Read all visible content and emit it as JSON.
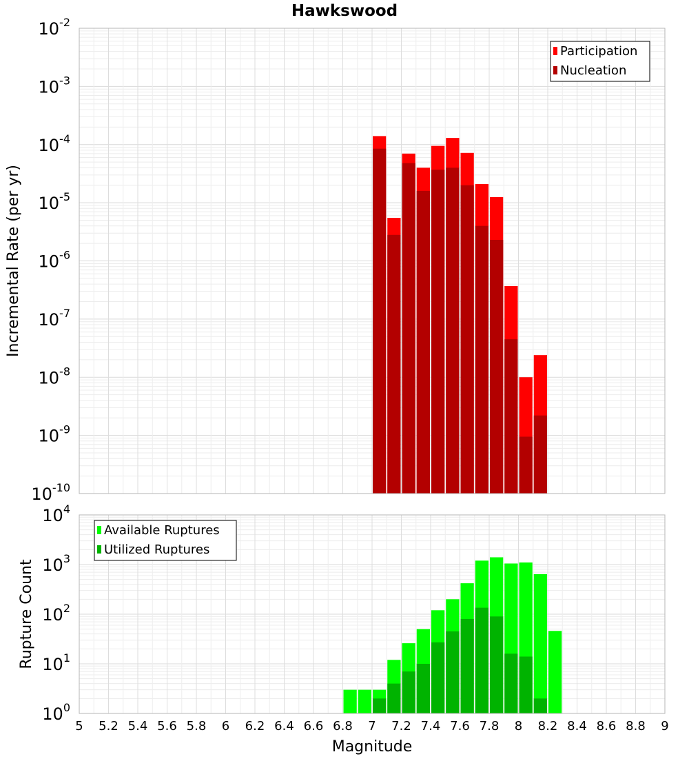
{
  "title": "Hawkswood",
  "chart_data": [
    {
      "type": "bar",
      "scale": "log",
      "ylabel": "Incremental Rate (per yr)",
      "ylim": [
        1e-10,
        0.01
      ],
      "y_tick_exponents": [
        -2,
        -3,
        -4,
        -5,
        -6,
        -7,
        -8,
        -9,
        -10
      ],
      "y_tick_base": "10",
      "xlim": [
        5,
        9
      ],
      "bar_width": 0.1,
      "grid": true,
      "legend_position": "top-right",
      "x": [
        7.05,
        7.15,
        7.25,
        7.35,
        7.45,
        7.55,
        7.65,
        7.75,
        7.85,
        7.95,
        8.05,
        8.15
      ],
      "series": [
        {
          "name": "Participation",
          "color": "#ff0000",
          "values": [
            0.00014,
            5.5e-06,
            7e-05,
            4e-05,
            9.5e-05,
            0.00013,
            7.2e-05,
            2.1e-05,
            1.25e-05,
            3.7e-07,
            1e-08,
            2.4e-08
          ]
        },
        {
          "name": "Nucleation",
          "color": "#b30000",
          "values": [
            8.5e-05,
            2.8e-06,
            4.8e-05,
            1.6e-05,
            3.7e-05,
            4e-05,
            2e-05,
            4e-06,
            2.3e-06,
            4.5e-08,
            9.5e-10,
            2.2e-09
          ]
        }
      ]
    },
    {
      "type": "bar",
      "scale": "log",
      "ylabel": "Rupture Count",
      "xlabel": "Magnitude",
      "ylim": [
        1,
        10000
      ],
      "y_tick_exponents": [
        4,
        3,
        2,
        1,
        0
      ],
      "y_tick_base": "10",
      "xlim": [
        5,
        9
      ],
      "x_ticks": [
        "5",
        "5.2",
        "5.4",
        "5.6",
        "5.8",
        "6",
        "6.2",
        "6.4",
        "6.6",
        "6.8",
        "7",
        "7.2",
        "7.4",
        "7.6",
        "7.8",
        "8",
        "8.2",
        "8.4",
        "8.6",
        "8.8",
        "9"
      ],
      "bar_width": 0.1,
      "grid": true,
      "legend_position": "top-left",
      "x": [
        6.85,
        6.95,
        7.05,
        7.15,
        7.25,
        7.35,
        7.45,
        7.55,
        7.65,
        7.75,
        7.85,
        7.95,
        8.05,
        8.15,
        8.25
      ],
      "series": [
        {
          "name": "Available Ruptures",
          "color": "#00ff00",
          "values": [
            3,
            3,
            3,
            12,
            26,
            50,
            120,
            200,
            420,
            1200,
            1400,
            1050,
            1100,
            640,
            46
          ]
        },
        {
          "name": "Utilized Ruptures",
          "color": "#00b300",
          "values": [
            null,
            null,
            2,
            4,
            7,
            10,
            27,
            45,
            80,
            135,
            90,
            16,
            14,
            2,
            null
          ]
        }
      ]
    }
  ]
}
